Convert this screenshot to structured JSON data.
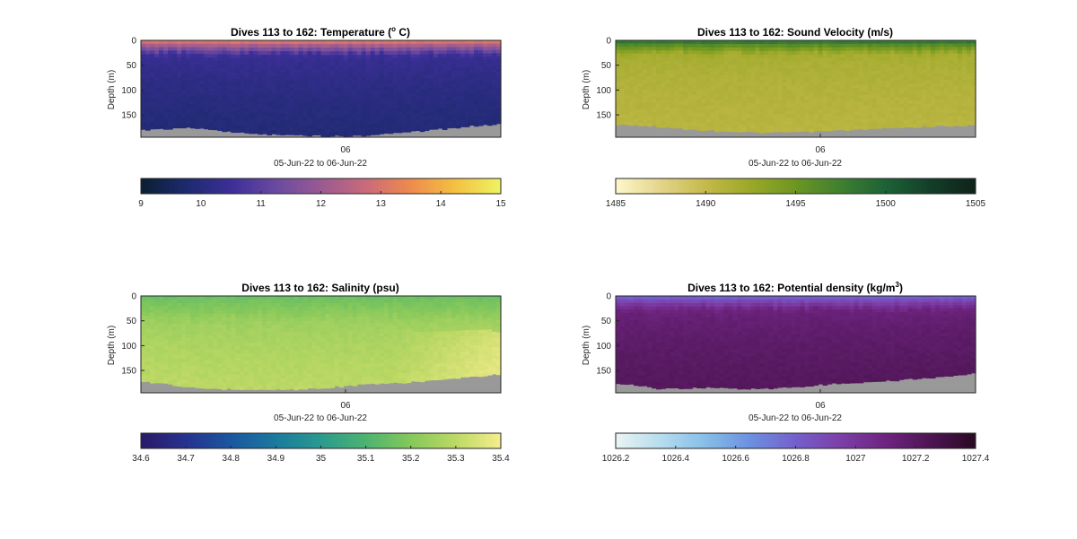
{
  "chart_data": [
    {
      "type": "heatmap",
      "title": "Dives 113 to 162: Temperature (",
      "title_sup": "o",
      "title_after": " C)",
      "ylabel": "Depth (m)",
      "xlabel": "05-Jun-22 to 06-Jun-22",
      "xticks": [
        "06"
      ],
      "yticks": [
        "0",
        "50",
        "100",
        "150"
      ],
      "ylim": [
        195,
        0
      ],
      "colorbar": {
        "ticks": [
          "9",
          "10",
          "11",
          "12",
          "13",
          "14",
          "15"
        ],
        "range": [
          9,
          15
        ],
        "colors": [
          "#0b2034",
          "#1d2a6e",
          "#3d2f99",
          "#6a4aa0",
          "#9a5a93",
          "#c96a7a",
          "#ee8a4e",
          "#f4c042",
          "#eef260"
        ]
      },
      "field": {
        "deep": 9.9,
        "mid": 10.5,
        "surface": 13.5,
        "thermocline_m": 30
      },
      "bottom_depth": [
        180,
        178,
        178,
        176,
        176,
        177,
        180,
        182,
        184,
        186,
        188,
        189,
        190,
        190,
        191,
        191,
        192,
        192,
        192,
        191,
        190,
        188,
        186,
        184,
        182,
        180,
        178,
        176,
        174,
        172,
        170,
        168
      ]
    },
    {
      "type": "heatmap",
      "title": "Dives 113 to 162: Sound Velocity (m/s)",
      "ylabel": "Depth (m)",
      "xlabel": "05-Jun-22 to 06-Jun-22",
      "xticks": [
        "06"
      ],
      "yticks": [
        "0",
        "50",
        "100",
        "150"
      ],
      "ylim": [
        195,
        0
      ],
      "colorbar": {
        "ticks": [
          "1485",
          "1490",
          "1495",
          "1500",
          "1505"
        ],
        "range": [
          1485,
          1505
        ],
        "colors": [
          "#fdf6c9",
          "#e2d488",
          "#c3b94a",
          "#9aa827",
          "#6d9622",
          "#3f8030",
          "#1d6336",
          "#133f2a",
          "#0f231a"
        ]
      },
      "field": {
        "deep": 1490.6,
        "mid": 1492.0,
        "surface": 1499.5,
        "thermocline_m": 28
      },
      "bottom_depth": [
        170,
        170,
        171,
        172,
        174,
        176,
        178,
        180,
        181,
        182,
        183,
        184,
        185,
        185,
        185,
        184,
        184,
        183,
        182,
        181,
        180,
        179,
        178,
        177,
        176,
        175,
        174,
        173,
        172,
        172,
        171,
        170
      ]
    },
    {
      "type": "heatmap",
      "title": "Dives 113 to 162: Salinity (psu)",
      "ylabel": "Depth (m)",
      "xlabel": "05-Jun-22 to 06-Jun-22",
      "xticks": [
        "06"
      ],
      "yticks": [
        "0",
        "50",
        "100",
        "150"
      ],
      "ylim": [
        195,
        0
      ],
      "colorbar": {
        "ticks": [
          "34.6",
          "34.7",
          "34.8",
          "34.9",
          "35",
          "35.1",
          "35.2",
          "35.3",
          "35.4"
        ],
        "range": [
          34.6,
          35.4
        ],
        "colors": [
          "#2a1a6a",
          "#26338f",
          "#1a57a0",
          "#1b7a9e",
          "#2a9a8e",
          "#4db371",
          "#84c85b",
          "#bcd864",
          "#f4ec8e"
        ]
      },
      "field": {
        "deep": 35.3,
        "mid": 35.22,
        "surface": 35.15,
        "thermocline_m": 40
      },
      "bottom_depth": [
        172,
        174,
        176,
        180,
        184,
        186,
        186,
        187,
        187,
        187,
        188,
        188,
        188,
        188,
        187,
        186,
        184,
        182,
        180,
        178,
        177,
        176,
        175,
        174,
        172,
        170,
        168,
        166,
        164,
        162,
        160,
        158
      ]
    },
    {
      "type": "heatmap",
      "title": "Dives 113 to 162: Potential density (kg/m",
      "title_sup": "3",
      "title_after": ")",
      "ylabel": "Depth (m)",
      "xlabel": "05-Jun-22 to 06-Jun-22",
      "xticks": [
        "06"
      ],
      "yticks": [
        "0",
        "50",
        "100",
        "150"
      ],
      "ylim": [
        195,
        0
      ],
      "colorbar": {
        "ticks": [
          "1026.2",
          "1026.4",
          "1026.6",
          "1026.8",
          "1027",
          "1027.2",
          "1027.4"
        ],
        "range": [
          1026.2,
          1027.4
        ],
        "colors": [
          "#e8f4f4",
          "#b5dcee",
          "#86bde8",
          "#6c8fe0",
          "#7460cb",
          "#7d3fa8",
          "#6e2480",
          "#4e1553",
          "#2a0a24"
        ]
      },
      "field": {
        "deep": 1027.22,
        "mid": 1027.1,
        "surface": 1026.75,
        "thermocline_m": 28
      },
      "bottom_depth": [
        176,
        177,
        180,
        184,
        186,
        186,
        185,
        184,
        184,
        185,
        186,
        186,
        186,
        186,
        185,
        184,
        182,
        180,
        178,
        176,
        175,
        174,
        173,
        172,
        170,
        168,
        166,
        164,
        162,
        160,
        158,
        156
      ]
    }
  ]
}
